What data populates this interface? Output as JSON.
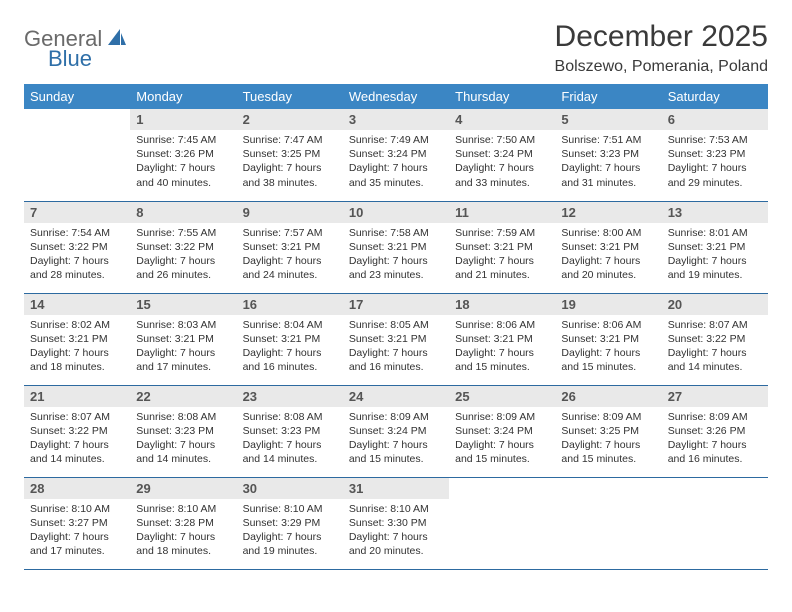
{
  "logo": {
    "general": "General",
    "blue": "Blue"
  },
  "title": "December 2025",
  "location": "Bolszewo, Pomerania, Poland",
  "colors": {
    "header_bg": "#3b86c4",
    "header_text": "#ffffff",
    "daynum_bg": "#e9e9e9",
    "row_border": "#2d6aa0",
    "body_text": "#323232",
    "logo_general": "#6a6a6a",
    "logo_blue": "#2f6fa8"
  },
  "weekdays": [
    "Sunday",
    "Monday",
    "Tuesday",
    "Wednesday",
    "Thursday",
    "Friday",
    "Saturday"
  ],
  "start_offset": 1,
  "days": [
    {
      "n": 1,
      "sunrise": "7:45 AM",
      "sunset": "3:26 PM",
      "daylight": "7 hours and 40 minutes."
    },
    {
      "n": 2,
      "sunrise": "7:47 AM",
      "sunset": "3:25 PM",
      "daylight": "7 hours and 38 minutes."
    },
    {
      "n": 3,
      "sunrise": "7:49 AM",
      "sunset": "3:24 PM",
      "daylight": "7 hours and 35 minutes."
    },
    {
      "n": 4,
      "sunrise": "7:50 AM",
      "sunset": "3:24 PM",
      "daylight": "7 hours and 33 minutes."
    },
    {
      "n": 5,
      "sunrise": "7:51 AM",
      "sunset": "3:23 PM",
      "daylight": "7 hours and 31 minutes."
    },
    {
      "n": 6,
      "sunrise": "7:53 AM",
      "sunset": "3:23 PM",
      "daylight": "7 hours and 29 minutes."
    },
    {
      "n": 7,
      "sunrise": "7:54 AM",
      "sunset": "3:22 PM",
      "daylight": "7 hours and 28 minutes."
    },
    {
      "n": 8,
      "sunrise": "7:55 AM",
      "sunset": "3:22 PM",
      "daylight": "7 hours and 26 minutes."
    },
    {
      "n": 9,
      "sunrise": "7:57 AM",
      "sunset": "3:21 PM",
      "daylight": "7 hours and 24 minutes."
    },
    {
      "n": 10,
      "sunrise": "7:58 AM",
      "sunset": "3:21 PM",
      "daylight": "7 hours and 23 minutes."
    },
    {
      "n": 11,
      "sunrise": "7:59 AM",
      "sunset": "3:21 PM",
      "daylight": "7 hours and 21 minutes."
    },
    {
      "n": 12,
      "sunrise": "8:00 AM",
      "sunset": "3:21 PM",
      "daylight": "7 hours and 20 minutes."
    },
    {
      "n": 13,
      "sunrise": "8:01 AM",
      "sunset": "3:21 PM",
      "daylight": "7 hours and 19 minutes."
    },
    {
      "n": 14,
      "sunrise": "8:02 AM",
      "sunset": "3:21 PM",
      "daylight": "7 hours and 18 minutes."
    },
    {
      "n": 15,
      "sunrise": "8:03 AM",
      "sunset": "3:21 PM",
      "daylight": "7 hours and 17 minutes."
    },
    {
      "n": 16,
      "sunrise": "8:04 AM",
      "sunset": "3:21 PM",
      "daylight": "7 hours and 16 minutes."
    },
    {
      "n": 17,
      "sunrise": "8:05 AM",
      "sunset": "3:21 PM",
      "daylight": "7 hours and 16 minutes."
    },
    {
      "n": 18,
      "sunrise": "8:06 AM",
      "sunset": "3:21 PM",
      "daylight": "7 hours and 15 minutes."
    },
    {
      "n": 19,
      "sunrise": "8:06 AM",
      "sunset": "3:21 PM",
      "daylight": "7 hours and 15 minutes."
    },
    {
      "n": 20,
      "sunrise": "8:07 AM",
      "sunset": "3:22 PM",
      "daylight": "7 hours and 14 minutes."
    },
    {
      "n": 21,
      "sunrise": "8:07 AM",
      "sunset": "3:22 PM",
      "daylight": "7 hours and 14 minutes."
    },
    {
      "n": 22,
      "sunrise": "8:08 AM",
      "sunset": "3:23 PM",
      "daylight": "7 hours and 14 minutes."
    },
    {
      "n": 23,
      "sunrise": "8:08 AM",
      "sunset": "3:23 PM",
      "daylight": "7 hours and 14 minutes."
    },
    {
      "n": 24,
      "sunrise": "8:09 AM",
      "sunset": "3:24 PM",
      "daylight": "7 hours and 15 minutes."
    },
    {
      "n": 25,
      "sunrise": "8:09 AM",
      "sunset": "3:24 PM",
      "daylight": "7 hours and 15 minutes."
    },
    {
      "n": 26,
      "sunrise": "8:09 AM",
      "sunset": "3:25 PM",
      "daylight": "7 hours and 15 minutes."
    },
    {
      "n": 27,
      "sunrise": "8:09 AM",
      "sunset": "3:26 PM",
      "daylight": "7 hours and 16 minutes."
    },
    {
      "n": 28,
      "sunrise": "8:10 AM",
      "sunset": "3:27 PM",
      "daylight": "7 hours and 17 minutes."
    },
    {
      "n": 29,
      "sunrise": "8:10 AM",
      "sunset": "3:28 PM",
      "daylight": "7 hours and 18 minutes."
    },
    {
      "n": 30,
      "sunrise": "8:10 AM",
      "sunset": "3:29 PM",
      "daylight": "7 hours and 19 minutes."
    },
    {
      "n": 31,
      "sunrise": "8:10 AM",
      "sunset": "3:30 PM",
      "daylight": "7 hours and 20 minutes."
    }
  ],
  "labels": {
    "sunrise": "Sunrise: ",
    "sunset": "Sunset: ",
    "daylight": "Daylight: "
  }
}
